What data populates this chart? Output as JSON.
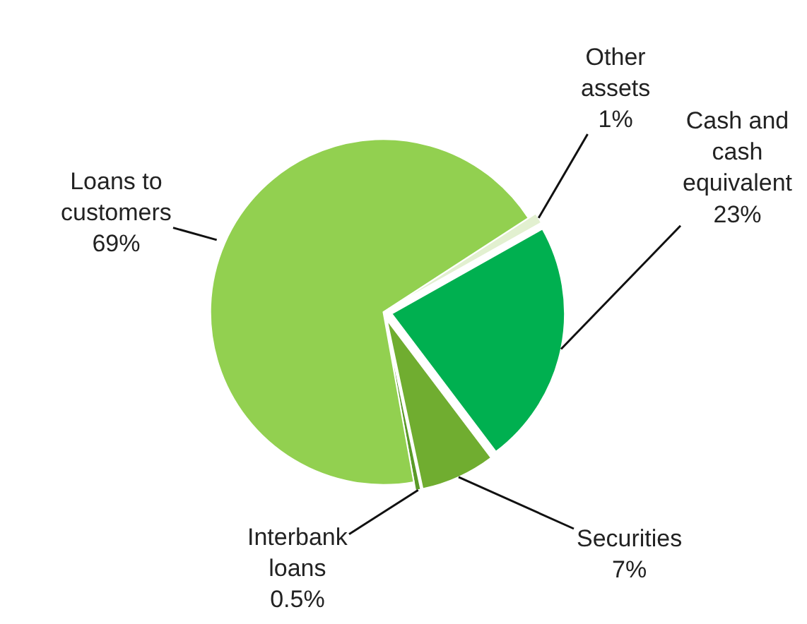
{
  "chart_data": {
    "type": "pie",
    "categories": [
      "Other assets",
      "Cash and cash equivalent",
      "Securities",
      "Interbank loans",
      "Loans to customers"
    ],
    "values": [
      1,
      23,
      7,
      0.5,
      69
    ],
    "value_labels": [
      "1%",
      "23%",
      "7%",
      "0.5%",
      "69%"
    ],
    "colors": [
      "#e2f0d0",
      "#00b050",
      "#70ad30",
      "#5a9a28",
      "#92d050"
    ]
  }
}
